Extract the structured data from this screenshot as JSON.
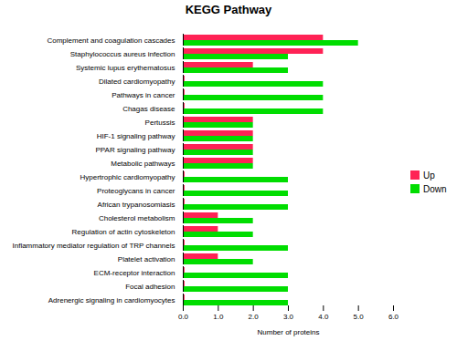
{
  "chart_data": {
    "type": "bar",
    "orientation": "horizontal",
    "title": "KEGG Pathway",
    "xlabel": "Number of proteins",
    "categories": [
      "Complement and coagulation cascades",
      "Staphylococcus aureus infection",
      "Systemic lupus erythematosus",
      "Dilated cardiomyopathy",
      "Pathways in cancer",
      "Chagas disease",
      "Pertussis",
      "HIF-1 signaling pathway",
      "PPAR signaling pathway",
      "Metabolic pathways",
      "Hypertrophic cardiomyopathy",
      "Proteoglycans in cancer",
      "African trypanosomiasis",
      "Cholesterol metabolism",
      "Regulation of actin cytoskeleton",
      "Inflammatory mediator regulation of TRP channels",
      "Platelet activation",
      "ECM-receptor interaction",
      "Focal adhesion",
      "Adrenergic signaling in cardiomyocytes"
    ],
    "series": [
      {
        "name": "Up",
        "color": "#FF2255",
        "values": [
          4,
          4,
          2,
          0.05,
          0.05,
          0.05,
          2,
          2,
          2,
          2,
          0.05,
          0.05,
          0.05,
          1,
          1,
          0.05,
          1,
          0.05,
          0.05,
          0.05
        ]
      },
      {
        "name": "Down",
        "color": "#00DD00",
        "values": [
          5,
          3,
          3,
          4,
          4,
          4,
          2,
          2,
          2,
          2,
          3,
          3,
          3,
          2,
          2,
          3,
          2,
          3,
          3,
          3
        ]
      }
    ],
    "xlim": [
      0,
      6
    ],
    "xticks": [
      0,
      1,
      2,
      3,
      4,
      5,
      6
    ],
    "legend": "right"
  }
}
